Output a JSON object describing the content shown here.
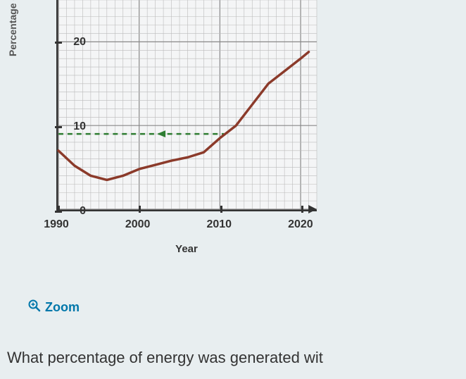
{
  "chart": {
    "type": "line",
    "y_axis_label": "Percentage of energy generated without fossil fuels",
    "x_axis_label": "Year",
    "x_range": [
      1990,
      2022
    ],
    "y_range": [
      0,
      25
    ],
    "x_ticks": [
      1990,
      2000,
      2010,
      2020
    ],
    "y_ticks": [
      0,
      10,
      20
    ],
    "x_tick_labels": [
      "1990",
      "2000",
      "2010",
      "2020"
    ],
    "y_tick_labels": [
      "0",
      "10",
      "20"
    ],
    "background_color": "#f4f5f6",
    "axis_color": "#333333",
    "grid_major_color": "#888888",
    "grid_minor_color": "#bbbbbb",
    "line_color": "#8b3a2a",
    "line_width": 3.5,
    "dashed_ref_color": "#2e7d32",
    "dashed_ref_y": 9,
    "dashed_ref_x_end": 2010.5,
    "data_points": [
      {
        "x": 1990,
        "y": 7.0
      },
      {
        "x": 1992,
        "y": 5.2
      },
      {
        "x": 1994,
        "y": 4.0
      },
      {
        "x": 1996,
        "y": 3.5
      },
      {
        "x": 1998,
        "y": 4.0
      },
      {
        "x": 2000,
        "y": 4.8
      },
      {
        "x": 2002,
        "y": 5.3
      },
      {
        "x": 2004,
        "y": 5.8
      },
      {
        "x": 2006,
        "y": 6.2
      },
      {
        "x": 2008,
        "y": 6.8
      },
      {
        "x": 2010,
        "y": 8.5
      },
      {
        "x": 2012,
        "y": 10.0
      },
      {
        "x": 2014,
        "y": 12.5
      },
      {
        "x": 2016,
        "y": 15.0
      },
      {
        "x": 2018,
        "y": 16.5
      },
      {
        "x": 2020,
        "y": 18.0
      },
      {
        "x": 2021,
        "y": 18.8
      }
    ]
  },
  "zoom_label": "Zoom",
  "question_text": "What percentage of energy was generated wit",
  "colors": {
    "page_bg": "#e8eef0",
    "link_color": "#0077aa",
    "text_color": "#333333"
  }
}
